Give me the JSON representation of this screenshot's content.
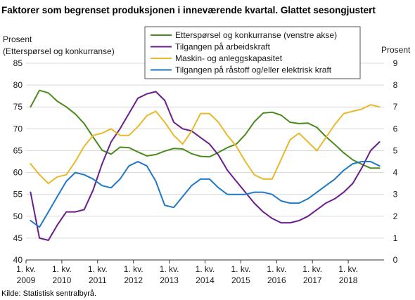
{
  "chart_data": {
    "type": "line",
    "title": "Faktorer som begrenset  produksjonen  i inneværende kvartal. Glattet sesongjustert",
    "left_axis_title": [
      "Prosent",
      "(Etterspørsel og konkurranse)"
    ],
    "right_axis_title": "Prosent",
    "left_axis": {
      "min": 40,
      "max": 85,
      "ticks": [
        40,
        45,
        50,
        55,
        60,
        65,
        70,
        75,
        80,
        85
      ]
    },
    "right_axis": {
      "min": 0,
      "max": 9,
      "ticks": [
        0,
        1,
        2,
        3,
        4,
        5,
        6,
        7,
        8,
        9
      ]
    },
    "grid": true,
    "legend_position": "top-center",
    "x_ticks": [
      {
        "line1": "1. kv.",
        "line2": "2009"
      },
      {
        "line1": "1. kv.",
        "line2": "2010"
      },
      {
        "line1": "1. kv.",
        "line2": "2011"
      },
      {
        "line1": "1. kv.",
        "line2": "2012"
      },
      {
        "line1": "1. kv.",
        "line2": "2013"
      },
      {
        "line1": "1. kv.",
        "line2": "2014"
      },
      {
        "line1": "1. kv.",
        "line2": "2015"
      },
      {
        "line1": "1. kv.",
        "line2": "2016"
      },
      {
        "line1": "1. kv.",
        "line2": "2017"
      },
      {
        "line1": "1. kv.",
        "line2": "2018"
      }
    ],
    "quarters": [
      "2009K1",
      "2009K2",
      "2009K3",
      "2009K4",
      "2010K1",
      "2010K2",
      "2010K3",
      "2010K4",
      "2011K1",
      "2011K2",
      "2011K3",
      "2011K4",
      "2012K1",
      "2012K2",
      "2012K3",
      "2012K4",
      "2013K1",
      "2013K2",
      "2013K3",
      "2013K4",
      "2014K1",
      "2014K2",
      "2014K3",
      "2014K4",
      "2015K1",
      "2015K2",
      "2015K3",
      "2015K4",
      "2016K1",
      "2016K2",
      "2016K3",
      "2016K4",
      "2017K1",
      "2017K2",
      "2017K3",
      "2017K4",
      "2018K1",
      "2018K2",
      "2018K3",
      "2018K4"
    ],
    "series": [
      {
        "name": "Etterspørsel og konkurranse (venstre akse)",
        "axis": "left",
        "color": "#4b8a1e",
        "values": [
          75.0,
          78.8,
          78.2,
          76.3,
          75.0,
          73.4,
          71.2,
          68.1,
          65.1,
          64.2,
          65.8,
          65.7,
          64.7,
          63.8,
          64.1,
          64.9,
          65.5,
          65.4,
          64.3,
          63.7,
          63.6,
          64.6,
          65.7,
          66.5,
          68.7,
          71.6,
          73.6,
          73.8,
          73.1,
          71.5,
          71.2,
          71.3,
          70.3,
          68.2,
          66.4,
          64.5,
          62.9,
          61.9,
          61.0,
          61.0
        ]
      },
      {
        "name": "Tilgangen på arbeidskraft",
        "axis": "right",
        "color": "#6a1e8e",
        "values": [
          3.1,
          1.0,
          0.9,
          1.6,
          2.2,
          2.2,
          2.3,
          3.2,
          4.4,
          5.4,
          6.0,
          6.7,
          7.4,
          7.6,
          7.7,
          7.3,
          6.3,
          6.0,
          5.9,
          5.6,
          5.3,
          4.8,
          4.1,
          3.6,
          3.1,
          2.6,
          2.2,
          1.9,
          1.7,
          1.7,
          1.8,
          2.0,
          2.3,
          2.6,
          2.8,
          3.1,
          3.5,
          4.2,
          5.0,
          5.4
        ]
      },
      {
        "name": "Maskin- og anleggskapasitet",
        "axis": "right",
        "color": "#e8b92a",
        "values": [
          4.4,
          3.9,
          3.5,
          3.8,
          3.9,
          4.5,
          5.2,
          5.7,
          5.8,
          6.0,
          5.7,
          5.7,
          6.1,
          6.6,
          6.8,
          6.3,
          5.7,
          5.3,
          5.9,
          6.7,
          6.7,
          6.3,
          5.7,
          5.2,
          4.5,
          3.9,
          3.7,
          3.7,
          4.6,
          5.5,
          5.8,
          5.4,
          5.0,
          5.6,
          6.2,
          6.7,
          6.8,
          6.9,
          7.1,
          7.0
        ]
      },
      {
        "name": "Tilgangen på råstoff og/eller elektrisk kraft",
        "axis": "right",
        "color": "#1f78c8",
        "values": [
          1.8,
          1.5,
          2.2,
          2.9,
          3.6,
          4.0,
          3.9,
          3.7,
          3.4,
          3.3,
          3.7,
          4.3,
          4.5,
          4.3,
          3.6,
          2.5,
          2.4,
          2.9,
          3.4,
          3.7,
          3.7,
          3.3,
          3.0,
          3.0,
          3.0,
          3.1,
          3.1,
          3.0,
          2.7,
          2.6,
          2.6,
          2.8,
          3.1,
          3.4,
          3.7,
          4.1,
          4.4,
          4.5,
          4.5,
          4.3
        ]
      }
    ],
    "source": "Kilde: Statistisk sentralbyrå."
  }
}
